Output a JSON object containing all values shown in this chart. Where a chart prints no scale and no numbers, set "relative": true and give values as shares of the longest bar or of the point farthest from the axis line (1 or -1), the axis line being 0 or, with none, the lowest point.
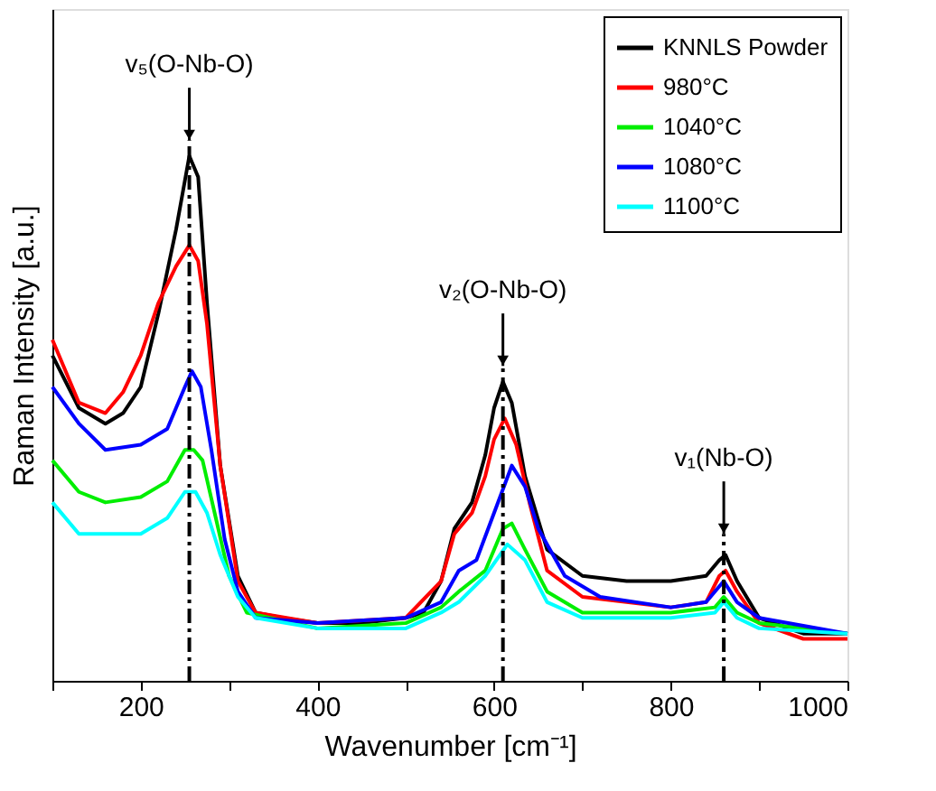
{
  "chart_data": {
    "type": "line",
    "relative": true,
    "xlabel": "Wavenumber [cm⁻¹]",
    "ylabel": "Raman Intensity [a.u.]",
    "xlim": [
      100,
      1000
    ],
    "xticks": [
      {
        "value": 100,
        "label": null
      },
      200,
      {
        "value": 300,
        "label": null
      },
      400,
      {
        "value": 500,
        "label": null
      },
      600,
      {
        "value": 700,
        "label": null
      },
      800,
      {
        "value": 900,
        "label": null
      },
      1000
    ],
    "tick_labels": "x",
    "grid": false,
    "legend": "top right",
    "line_style": "solid",
    "marker": "none",
    "series": [
      {
        "name": "KNNLS Powder",
        "color": "#000000",
        "x": [
          100,
          130,
          160,
          180,
          200,
          220,
          240,
          255,
          265,
          275,
          290,
          310,
          330,
          360,
          400,
          450,
          500,
          520,
          540,
          555,
          575,
          590,
          600,
          610,
          620,
          635,
          660,
          700,
          750,
          800,
          840,
          855,
          862,
          875,
          900,
          950,
          1000
        ],
        "values": [
          0.62,
          0.52,
          0.49,
          0.51,
          0.56,
          0.7,
          0.86,
          1,
          0.96,
          0.72,
          0.41,
          0.2,
          0.13,
          0.12,
          0.11,
          0.11,
          0.12,
          0.13,
          0.19,
          0.29,
          0.34,
          0.43,
          0.52,
          0.57,
          0.53,
          0.39,
          0.25,
          0.2,
          0.19,
          0.19,
          0.2,
          0.23,
          0.24,
          0.19,
          0.12,
          0.09,
          0.09
        ]
      },
      {
        "name": "980°C",
        "color": "#ff0000",
        "x": [
          100,
          130,
          160,
          180,
          200,
          220,
          240,
          255,
          265,
          275,
          290,
          310,
          330,
          400,
          500,
          540,
          555,
          575,
          590,
          600,
          612,
          625,
          640,
          660,
          700,
          800,
          840,
          855,
          862,
          875,
          900,
          950,
          1000
        ],
        "values": [
          0.65,
          0.53,
          0.51,
          0.55,
          0.62,
          0.72,
          0.79,
          0.83,
          0.8,
          0.68,
          0.41,
          0.19,
          0.13,
          0.11,
          0.12,
          0.19,
          0.28,
          0.32,
          0.39,
          0.46,
          0.5,
          0.45,
          0.34,
          0.21,
          0.16,
          0.14,
          0.15,
          0.2,
          0.21,
          0.17,
          0.11,
          0.08,
          0.08
        ]
      },
      {
        "name": "1040°C",
        "color": "#00ee00",
        "x": [
          100,
          130,
          160,
          200,
          230,
          250,
          260,
          270,
          285,
          300,
          320,
          400,
          500,
          540,
          560,
          590,
          610,
          620,
          635,
          660,
          700,
          800,
          850,
          860,
          875,
          900,
          1000
        ],
        "values": [
          0.42,
          0.36,
          0.34,
          0.35,
          0.38,
          0.44,
          0.44,
          0.42,
          0.31,
          0.2,
          0.13,
          0.1,
          0.11,
          0.14,
          0.17,
          0.21,
          0.29,
          0.3,
          0.25,
          0.17,
          0.13,
          0.13,
          0.14,
          0.16,
          0.13,
          0.11,
          0.09
        ]
      },
      {
        "name": "1080°C",
        "color": "#0000ff",
        "x": [
          100,
          130,
          160,
          200,
          230,
          250,
          258,
          268,
          280,
          295,
          310,
          330,
          400,
          500,
          540,
          560,
          580,
          600,
          620,
          635,
          650,
          680,
          720,
          800,
          840,
          860,
          875,
          900,
          1000
        ],
        "values": [
          0.56,
          0.49,
          0.44,
          0.45,
          0.48,
          0.56,
          0.59,
          0.56,
          0.44,
          0.27,
          0.17,
          0.12,
          0.11,
          0.12,
          0.15,
          0.21,
          0.23,
          0.32,
          0.41,
          0.37,
          0.29,
          0.2,
          0.16,
          0.14,
          0.15,
          0.19,
          0.15,
          0.12,
          0.09
        ]
      },
      {
        "name": "1100°C",
        "color": "#00ffff",
        "x": [
          100,
          130,
          160,
          200,
          230,
          250,
          262,
          275,
          290,
          310,
          330,
          400,
          500,
          540,
          560,
          590,
          615,
          635,
          660,
          700,
          800,
          850,
          860,
          875,
          900,
          1000
        ],
        "values": [
          0.34,
          0.28,
          0.28,
          0.28,
          0.31,
          0.36,
          0.36,
          0.32,
          0.24,
          0.16,
          0.12,
          0.1,
          0.1,
          0.13,
          0.15,
          0.2,
          0.26,
          0.23,
          0.15,
          0.12,
          0.12,
          0.13,
          0.15,
          0.12,
          0.1,
          0.09
        ]
      }
    ],
    "ref_lines": [
      {
        "axis": "x",
        "value": 255,
        "color": "#000000",
        "line_style": "dashdot"
      },
      {
        "axis": "x",
        "value": 610,
        "color": "#000000",
        "line_style": "dashdot"
      },
      {
        "axis": "x",
        "value": 860,
        "color": "#000000",
        "line_style": "dashdot"
      }
    ],
    "annotations": [
      {
        "text": "v₅(O-Nb-O)",
        "x": 255,
        "y": 1.03
      },
      {
        "text": "v₂(O-Nb-O)",
        "x": 610,
        "y": 0.6
      },
      {
        "text": "v₁(Nb-O)",
        "x": 860,
        "y": 0.28
      }
    ]
  }
}
